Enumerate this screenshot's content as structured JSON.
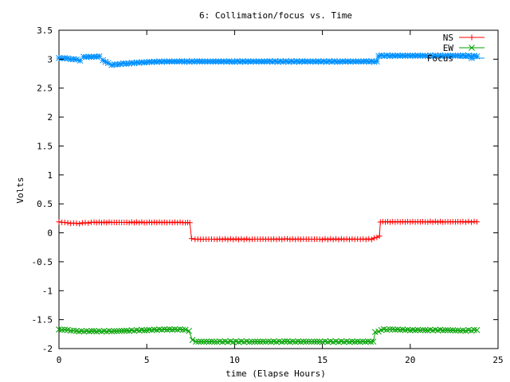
{
  "chart_data": {
    "type": "line",
    "title": "6: Collimation/focus vs. Time",
    "xlabel": "time (Elapse Hours)",
    "ylabel": "Volts",
    "xlim": [
      0,
      25
    ],
    "ylim": [
      -2,
      3.5
    ],
    "x_ticks": [
      "0",
      "5",
      "10",
      "15",
      "20",
      "25"
    ],
    "y_ticks": [
      "3.5",
      "3",
      "2.5",
      "2",
      "1.5",
      "1",
      "0.5",
      "0",
      "-0.5",
      "-1",
      "-1.5",
      "-2"
    ],
    "grid": false,
    "legend": "top-right",
    "series": [
      {
        "name": "NS",
        "color": "#ff0000",
        "marker": "plus",
        "points": [
          [
            0,
            0.19
          ],
          [
            0.5,
            0.17
          ],
          [
            1,
            0.16
          ],
          [
            1.5,
            0.17
          ],
          [
            2,
            0.18
          ],
          [
            3,
            0.18
          ],
          [
            4,
            0.18
          ],
          [
            5,
            0.18
          ],
          [
            6,
            0.18
          ],
          [
            7.2,
            0.18
          ],
          [
            7.45,
            0.17
          ],
          [
            7.55,
            -0.1
          ],
          [
            7.75,
            -0.11
          ],
          [
            9,
            -0.11
          ],
          [
            11,
            -0.11
          ],
          [
            13,
            -0.11
          ],
          [
            15,
            -0.11
          ],
          [
            17,
            -0.11
          ],
          [
            17.8,
            -0.11
          ],
          [
            18.1,
            -0.08
          ],
          [
            18.25,
            -0.05
          ],
          [
            18.3,
            0.19
          ],
          [
            19,
            0.19
          ],
          [
            20,
            0.19
          ],
          [
            21,
            0.19
          ],
          [
            22,
            0.19
          ],
          [
            23,
            0.19
          ],
          [
            23.8,
            0.19
          ]
        ]
      },
      {
        "name": "EW",
        "color": "#00a000",
        "marker": "cross",
        "points": [
          [
            0,
            -1.67
          ],
          [
            0.5,
            -1.68
          ],
          [
            1,
            -1.7
          ],
          [
            2,
            -1.7
          ],
          [
            3,
            -1.7
          ],
          [
            4,
            -1.69
          ],
          [
            5,
            -1.68
          ],
          [
            6,
            -1.67
          ],
          [
            7.2,
            -1.67
          ],
          [
            7.4,
            -1.7
          ],
          [
            7.6,
            -1.85
          ],
          [
            7.8,
            -1.88
          ],
          [
            9,
            -1.88
          ],
          [
            11,
            -1.88
          ],
          [
            13,
            -1.88
          ],
          [
            15,
            -1.88
          ],
          [
            17,
            -1.88
          ],
          [
            17.9,
            -1.88
          ],
          [
            18.0,
            -1.72
          ],
          [
            18.2,
            -1.7
          ],
          [
            18.5,
            -1.67
          ],
          [
            19,
            -1.67
          ],
          [
            20,
            -1.68
          ],
          [
            21,
            -1.68
          ],
          [
            22,
            -1.68
          ],
          [
            23,
            -1.69
          ],
          [
            23.8,
            -1.68
          ]
        ]
      },
      {
        "name": "Focus",
        "color": "#0090ff",
        "marker": "star",
        "points": [
          [
            0,
            3.02
          ],
          [
            0.5,
            3.01
          ],
          [
            1,
            2.99
          ],
          [
            1.2,
            2.98
          ],
          [
            1.4,
            3.04
          ],
          [
            2,
            3.04
          ],
          [
            2.3,
            3.05
          ],
          [
            2.5,
            2.98
          ],
          [
            2.8,
            2.93
          ],
          [
            3,
            2.9
          ],
          [
            3.5,
            2.92
          ],
          [
            4,
            2.93
          ],
          [
            5,
            2.95
          ],
          [
            6,
            2.96
          ],
          [
            7,
            2.96
          ],
          [
            8,
            2.96
          ],
          [
            10,
            2.96
          ],
          [
            12,
            2.96
          ],
          [
            14,
            2.96
          ],
          [
            16,
            2.96
          ],
          [
            17.5,
            2.96
          ],
          [
            18.1,
            2.96
          ],
          [
            18.2,
            3.06
          ],
          [
            19,
            3.06
          ],
          [
            20,
            3.06
          ],
          [
            21,
            3.06
          ],
          [
            22,
            3.06
          ],
          [
            23,
            3.06
          ],
          [
            23.8,
            3.05
          ]
        ]
      }
    ]
  }
}
